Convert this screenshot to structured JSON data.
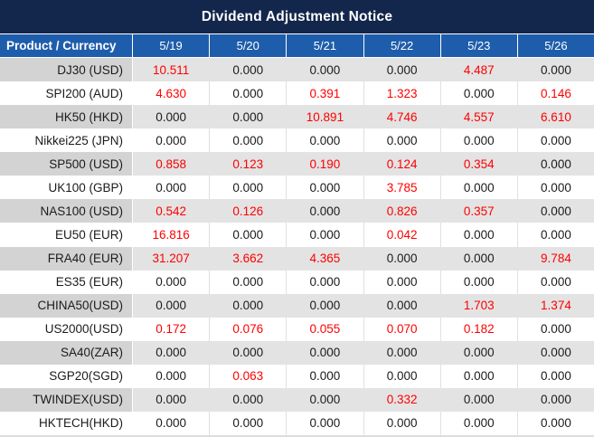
{
  "title": "Dividend Adjustment Notice",
  "colors": {
    "title_bg": "#13264c",
    "header_bg": "#1e5dab",
    "stripe_label_bg": "#d3d3d3",
    "stripe_value_bg": "#e3e3e3",
    "separator": "#e0e0e0",
    "bottom_line": "#dcdcdc",
    "red_value": "#fe0000",
    "text": "#1b1b1b"
  },
  "chart_data": {
    "type": "table",
    "title": "Dividend Adjustment Notice",
    "label_header": "Product / Currency",
    "date_headers": [
      "5/19",
      "5/20",
      "5/21",
      "5/22",
      "5/23",
      "5/26"
    ],
    "zero_display": "0.000",
    "rows": [
      {
        "product": "DJ30 (USD)",
        "values": [
          "10.511",
          "0.000",
          "0.000",
          "0.000",
          "4.487",
          "0.000"
        ]
      },
      {
        "product": "SPI200 (AUD)",
        "values": [
          "4.630",
          "0.000",
          "0.391",
          "1.323",
          "0.000",
          "0.146"
        ]
      },
      {
        "product": "HK50 (HKD)",
        "values": [
          "0.000",
          "0.000",
          "10.891",
          "4.746",
          "4.557",
          "6.610"
        ]
      },
      {
        "product": "Nikkei225 (JPN)",
        "values": [
          "0.000",
          "0.000",
          "0.000",
          "0.000",
          "0.000",
          "0.000"
        ]
      },
      {
        "product": "SP500 (USD)",
        "values": [
          "0.858",
          "0.123",
          "0.190",
          "0.124",
          "0.354",
          "0.000"
        ]
      },
      {
        "product": "UK100 (GBP)",
        "values": [
          "0.000",
          "0.000",
          "0.000",
          "3.785",
          "0.000",
          "0.000"
        ]
      },
      {
        "product": "NAS100 (USD)",
        "values": [
          "0.542",
          "0.126",
          "0.000",
          "0.826",
          "0.357",
          "0.000"
        ]
      },
      {
        "product": "EU50 (EUR)",
        "values": [
          "16.816",
          "0.000",
          "0.000",
          "0.042",
          "0.000",
          "0.000"
        ]
      },
      {
        "product": "FRA40 (EUR)",
        "values": [
          "31.207",
          "3.662",
          "4.365",
          "0.000",
          "0.000",
          "9.784"
        ]
      },
      {
        "product": "ES35 (EUR)",
        "values": [
          "0.000",
          "0.000",
          "0.000",
          "0.000",
          "0.000",
          "0.000"
        ]
      },
      {
        "product": "CHINA50(USD)",
        "values": [
          "0.000",
          "0.000",
          "0.000",
          "0.000",
          "1.703",
          "1.374"
        ]
      },
      {
        "product": "US2000(USD)",
        "values": [
          "0.172",
          "0.076",
          "0.055",
          "0.070",
          "0.182",
          "0.000"
        ]
      },
      {
        "product": "SA40(ZAR)",
        "values": [
          "0.000",
          "0.000",
          "0.000",
          "0.000",
          "0.000",
          "0.000"
        ]
      },
      {
        "product": "SGP20(SGD)",
        "values": [
          "0.000",
          "0.063",
          "0.000",
          "0.000",
          "0.000",
          "0.000"
        ]
      },
      {
        "product": "TWINDEX(USD)",
        "values": [
          "0.000",
          "0.000",
          "0.000",
          "0.332",
          "0.000",
          "0.000"
        ]
      },
      {
        "product": "HKTECH(HKD)",
        "values": [
          "0.000",
          "0.000",
          "0.000",
          "0.000",
          "0.000",
          "0.000"
        ]
      }
    ]
  }
}
